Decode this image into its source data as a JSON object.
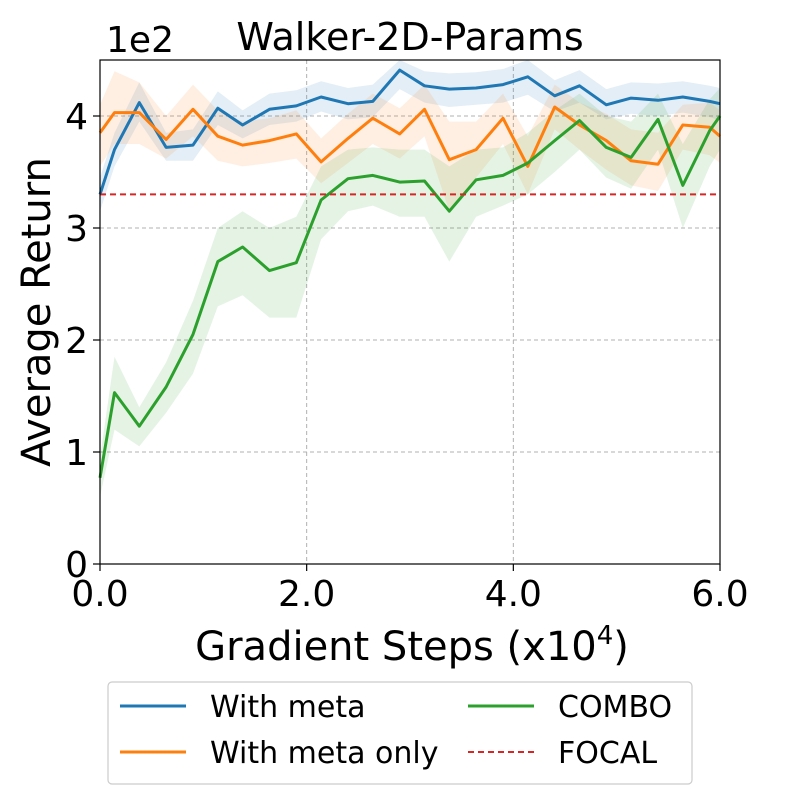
{
  "chart_data": {
    "type": "line",
    "title": "Walker-2D-Params",
    "xlabel": "Gradient Steps (x10",
    "xlabel_superscript": "4",
    "xlabel_suffix": ")",
    "ylabel": "Average Return",
    "y_scale_label": "1e2",
    "xlim": [
      0,
      6
    ],
    "ylim": [
      0,
      4.5
    ],
    "xticks": [
      0,
      2,
      4,
      6
    ],
    "xtick_labels": [
      "0.0",
      "2.0",
      "4.0",
      "6.0"
    ],
    "yticks": [
      0,
      1,
      2,
      3,
      4
    ],
    "ytick_labels": [
      "0",
      "1",
      "2",
      "3",
      "4"
    ],
    "grid": true,
    "legend_position": "bottom",
    "x": [
      0.0,
      0.14,
      0.38,
      0.64,
      0.9,
      1.14,
      1.38,
      1.64,
      1.9,
      2.14,
      2.4,
      2.64,
      2.9,
      3.14,
      3.38,
      3.64,
      3.9,
      4.14,
      4.4,
      4.64,
      4.9,
      5.14,
      5.4,
      5.64,
      5.9,
      6.0
    ],
    "series": [
      {
        "name": "With meta",
        "color": "#1f77b4",
        "values": [
          3.3,
          3.7,
          4.12,
          3.72,
          3.74,
          4.07,
          3.92,
          4.06,
          4.09,
          4.17,
          4.11,
          4.13,
          4.41,
          4.27,
          4.24,
          4.25,
          4.28,
          4.35,
          4.18,
          4.27,
          4.1,
          4.16,
          4.14,
          4.17,
          4.13,
          4.11
        ],
        "lower": [
          3.15,
          3.55,
          3.95,
          3.6,
          3.6,
          3.92,
          3.8,
          3.92,
          3.95,
          4.04,
          3.97,
          3.99,
          4.24,
          4.12,
          4.08,
          4.1,
          4.12,
          4.19,
          4.04,
          4.12,
          3.97,
          4.02,
          4.0,
          4.03,
          3.99,
          3.96
        ],
        "upper": [
          3.45,
          3.85,
          4.3,
          3.85,
          3.88,
          4.22,
          4.05,
          4.2,
          4.23,
          4.31,
          4.25,
          4.28,
          4.5,
          4.4,
          4.38,
          4.39,
          4.42,
          4.5,
          4.32,
          4.41,
          4.24,
          4.3,
          4.29,
          4.31,
          4.27,
          4.25
        ]
      },
      {
        "name": "With meta only",
        "color": "#ff7f0e",
        "values": [
          3.85,
          4.03,
          4.03,
          3.79,
          4.06,
          3.82,
          3.74,
          3.78,
          3.84,
          3.59,
          3.8,
          3.98,
          3.84,
          4.06,
          3.61,
          3.7,
          3.98,
          3.55,
          4.08,
          3.92,
          3.78,
          3.6,
          3.57,
          3.92,
          3.9,
          3.82
        ],
        "lower": [
          3.55,
          3.75,
          3.75,
          3.62,
          3.82,
          3.6,
          3.55,
          3.58,
          3.62,
          3.4,
          3.58,
          3.75,
          3.62,
          3.82,
          3.15,
          3.45,
          3.75,
          3.3,
          3.88,
          3.7,
          3.52,
          3.38,
          3.33,
          3.7,
          3.65,
          3.58
        ],
        "upper": [
          4.1,
          4.4,
          4.3,
          4.0,
          4.28,
          4.05,
          3.95,
          3.98,
          4.05,
          3.8,
          4.02,
          4.2,
          4.07,
          4.28,
          3.95,
          3.95,
          4.2,
          3.82,
          4.28,
          4.12,
          4.02,
          3.88,
          3.85,
          4.1,
          4.12,
          4.05
        ]
      },
      {
        "name": "COMBO",
        "color": "#2ca02c",
        "values": [
          0.77,
          1.53,
          1.23,
          1.58,
          2.05,
          2.7,
          2.83,
          2.62,
          2.69,
          3.25,
          3.44,
          3.47,
          3.41,
          3.42,
          3.15,
          3.43,
          3.47,
          3.58,
          3.78,
          3.96,
          3.72,
          3.63,
          3.97,
          3.38,
          3.87,
          4.0
        ],
        "lower": [
          0.6,
          1.2,
          1.05,
          1.35,
          1.7,
          2.3,
          2.4,
          2.2,
          2.2,
          2.9,
          3.15,
          3.2,
          3.1,
          3.1,
          2.7,
          3.1,
          3.2,
          3.3,
          3.5,
          3.7,
          3.45,
          3.35,
          3.7,
          3.0,
          3.55,
          3.7
        ],
        "upper": [
          0.95,
          1.85,
          1.4,
          1.8,
          2.35,
          3.0,
          3.15,
          3.0,
          3.1,
          3.55,
          3.7,
          3.72,
          3.7,
          3.7,
          3.55,
          3.7,
          3.72,
          3.85,
          4.05,
          4.2,
          4.0,
          3.95,
          4.2,
          3.75,
          4.15,
          4.25
        ]
      }
    ],
    "baseline": {
      "name": "FOCAL",
      "value": 3.3,
      "color": "#d62728",
      "style": "dashed"
    }
  }
}
